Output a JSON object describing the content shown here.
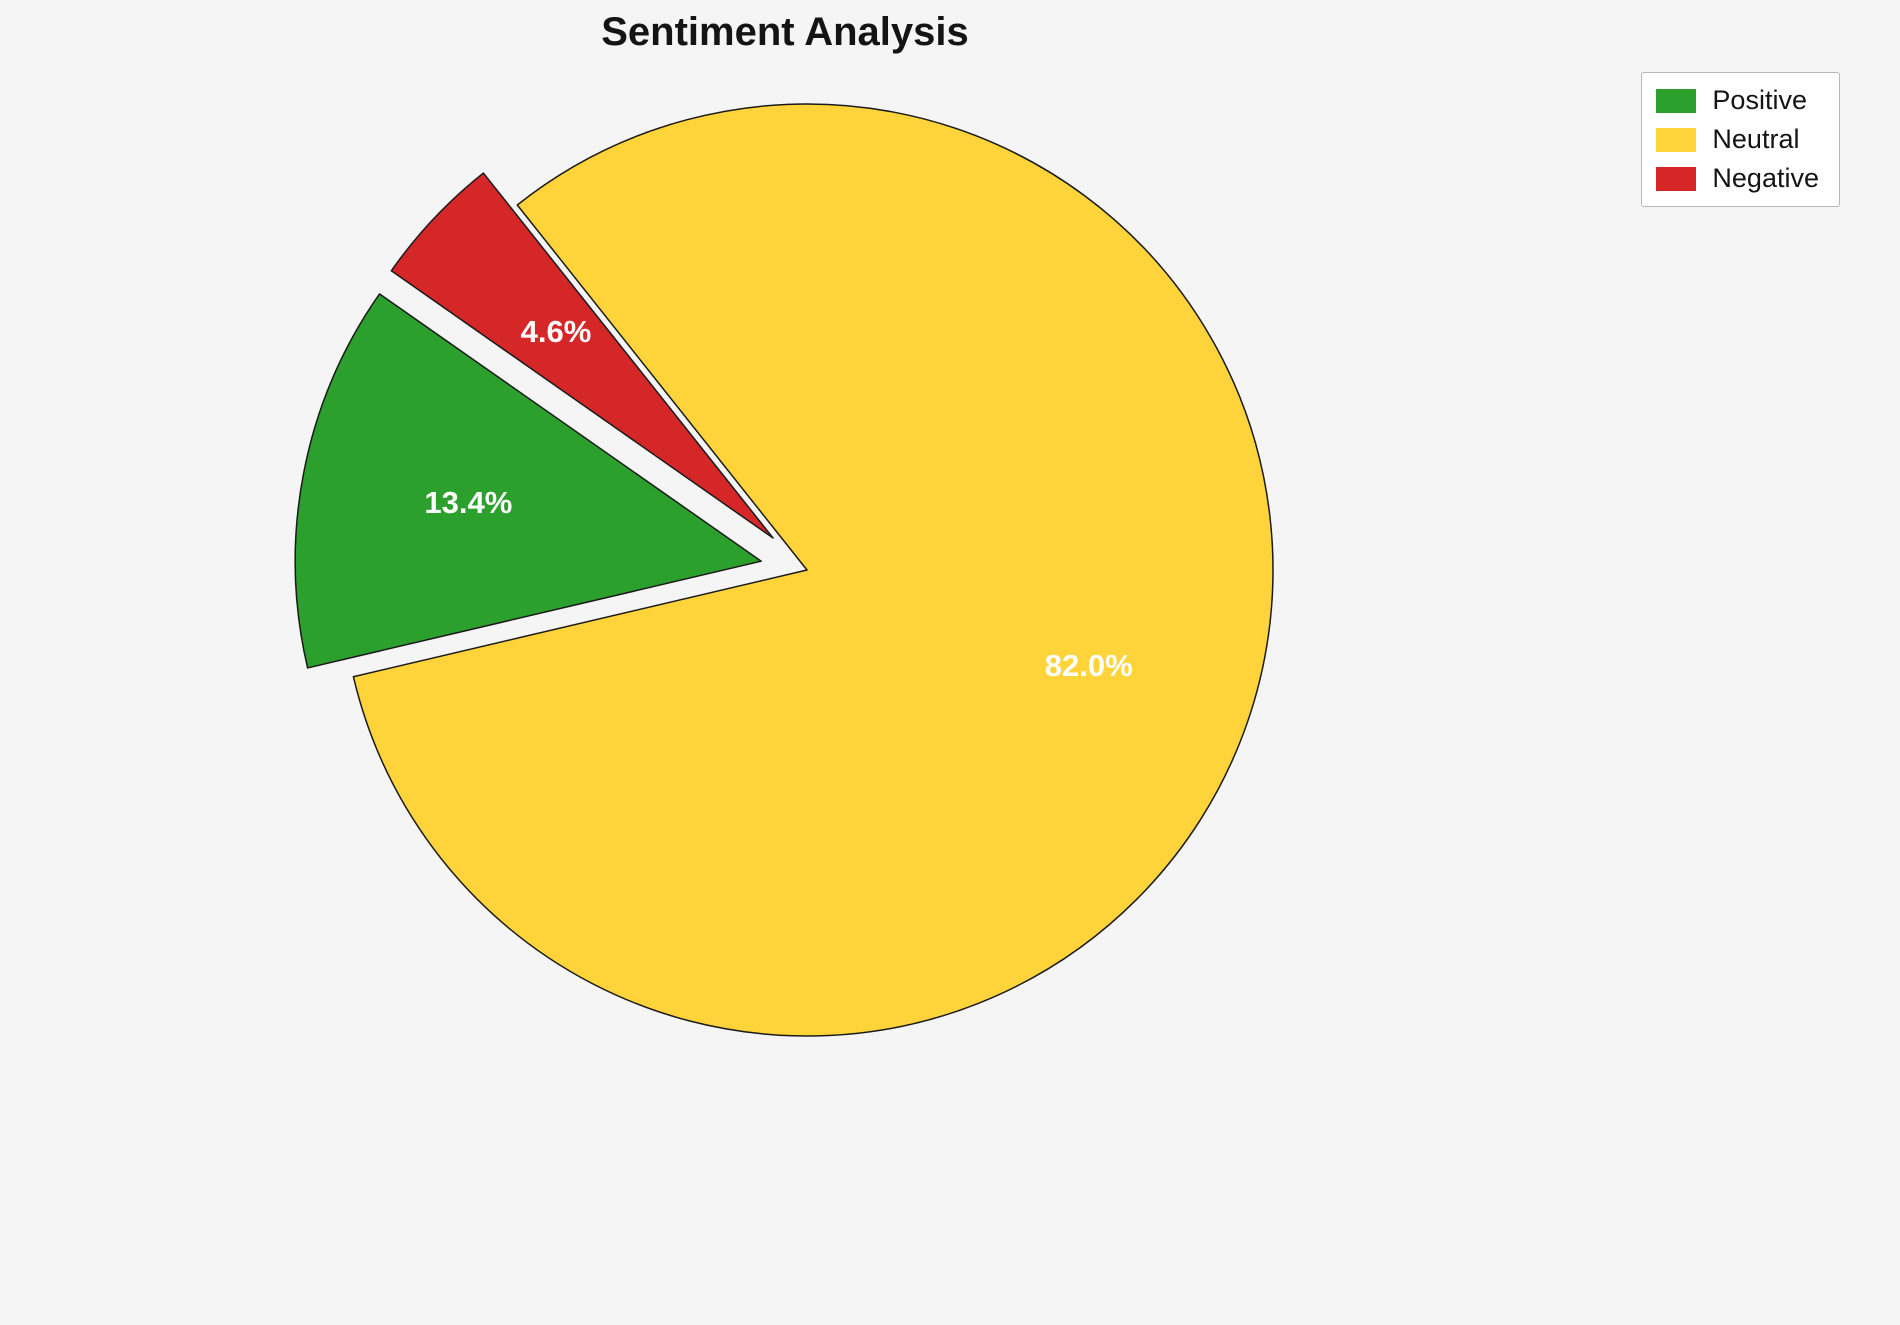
{
  "title": "Sentiment Analysis",
  "chart_data": {
    "type": "pie",
    "title": "Sentiment Analysis",
    "slices": [
      {
        "label": "Positive",
        "value": 13.4,
        "pct_label": "13.4%",
        "color": "#2ca02c",
        "explode": 0.1
      },
      {
        "label": "Neutral",
        "value": 82.0,
        "pct_label": "82.0%",
        "color": "#ffd43b",
        "explode": 0.0
      },
      {
        "label": "Negative",
        "value": 4.6,
        "pct_label": "4.6%",
        "color": "#d62728",
        "explode": 0.1
      }
    ],
    "start_angle": 145,
    "counterclockwise": true,
    "pct_distance": 0.64,
    "edge_color": "#1a1a1a",
    "pct_text_color": "#ffffff",
    "background": "#f5f5f5",
    "legend": {
      "position": "upper right",
      "entries": [
        "Positive",
        "Neutral",
        "Negative"
      ]
    }
  }
}
